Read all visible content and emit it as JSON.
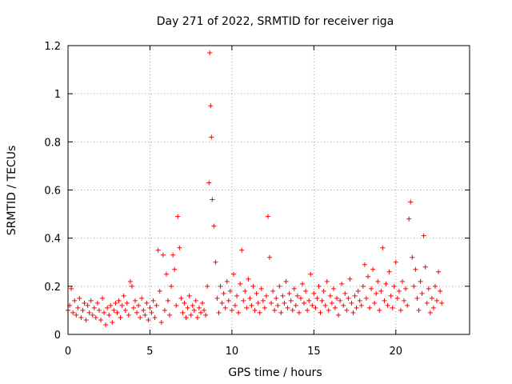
{
  "chart_data": {
    "type": "scatter",
    "title": "Day 271 of 2022, SRMTID for receiver riga",
    "xlabel": "GPS time / hours",
    "ylabel": "SRMTID / TECUs",
    "xlim": [
      0,
      24.5
    ],
    "ylim": [
      0,
      1.2
    ],
    "xticks": [
      0,
      5,
      10,
      15,
      20
    ],
    "xtick_labels": [
      "0",
      "5",
      "10",
      "15",
      "20"
    ],
    "yticks": [
      0,
      0.2,
      0.4,
      0.6,
      0.8,
      1.0,
      1.2
    ],
    "ytick_labels": [
      "0",
      "0.2",
      "0.4",
      "0.6",
      "0.8",
      "1",
      "1.2"
    ],
    "grid": true,
    "marker": "+",
    "color": "#ff0000",
    "series": [
      {
        "name": "SRMTID",
        "x": [
          0.0,
          0.1,
          0.2,
          0.3,
          0.4,
          0.5,
          0.6,
          0.7,
          0.8,
          0.9,
          1.0,
          1.1,
          1.2,
          1.3,
          1.4,
          1.5,
          1.6,
          1.7,
          1.8,
          1.9,
          2.0,
          2.1,
          2.2,
          2.3,
          2.4,
          2.5,
          2.6,
          2.7,
          2.8,
          2.9,
          3.0,
          3.1,
          3.2,
          3.3,
          3.4,
          3.5,
          3.6,
          3.7,
          3.8,
          3.9,
          4.0,
          4.1,
          4.2,
          4.3,
          4.4,
          4.5,
          4.6,
          4.7,
          4.8,
          4.9,
          5.0,
          5.1,
          5.2,
          5.3,
          5.4,
          5.5,
          5.6,
          5.7,
          5.8,
          5.9,
          6.0,
          6.1,
          6.2,
          6.3,
          6.4,
          6.5,
          6.6,
          6.7,
          6.8,
          6.9,
          7.0,
          7.1,
          7.2,
          7.3,
          7.4,
          7.5,
          7.6,
          7.7,
          7.8,
          7.9,
          8.0,
          8.1,
          8.2,
          8.3,
          8.4,
          8.5,
          8.6,
          8.65,
          8.7,
          8.75,
          8.8,
          8.9,
          9.0,
          9.1,
          9.2,
          9.3,
          9.4,
          9.5,
          9.6,
          9.7,
          9.8,
          9.9,
          10.0,
          10.1,
          10.2,
          10.3,
          10.4,
          10.5,
          10.6,
          10.7,
          10.8,
          10.9,
          11.0,
          11.1,
          11.2,
          11.3,
          11.4,
          11.5,
          11.6,
          11.7,
          11.8,
          11.9,
          12.0,
          12.1,
          12.2,
          12.3,
          12.4,
          12.5,
          12.6,
          12.7,
          12.8,
          12.9,
          13.0,
          13.1,
          13.2,
          13.3,
          13.4,
          13.5,
          13.6,
          13.7,
          13.8,
          13.9,
          14.0,
          14.1,
          14.2,
          14.3,
          14.4,
          14.5,
          14.6,
          14.7,
          14.8,
          14.9,
          15.0,
          15.1,
          15.2,
          15.3,
          15.4,
          15.5,
          15.6,
          15.7,
          15.8,
          15.9,
          16.0,
          16.1,
          16.2,
          16.3,
          16.4,
          16.5,
          16.6,
          16.7,
          16.8,
          16.9,
          17.0,
          17.1,
          17.2,
          17.3,
          17.4,
          17.5,
          17.6,
          17.7,
          17.8,
          17.9,
          18.0,
          18.1,
          18.2,
          18.3,
          18.4,
          18.5,
          18.6,
          18.7,
          18.8,
          18.9,
          19.0,
          19.1,
          19.2,
          19.3,
          19.4,
          19.5,
          19.6,
          19.7,
          19.8,
          19.9,
          20.0,
          20.1,
          20.2,
          20.3,
          20.4,
          20.5,
          20.6,
          20.7,
          20.8,
          20.9,
          21.0,
          21.1,
          21.2,
          21.3,
          21.4,
          21.5,
          21.6,
          21.7,
          21.8,
          21.9,
          22.0,
          22.1,
          22.2,
          22.3,
          22.4,
          22.5,
          22.6,
          22.7,
          22.8
        ],
        "y": [
          0.1,
          0.12,
          0.19,
          0.09,
          0.14,
          0.08,
          0.11,
          0.15,
          0.07,
          0.1,
          0.13,
          0.06,
          0.12,
          0.09,
          0.14,
          0.08,
          0.11,
          0.07,
          0.13,
          0.1,
          0.06,
          0.15,
          0.09,
          0.04,
          0.11,
          0.08,
          0.12,
          0.05,
          0.1,
          0.13,
          0.09,
          0.14,
          0.07,
          0.12,
          0.16,
          0.1,
          0.13,
          0.08,
          0.22,
          0.2,
          0.11,
          0.14,
          0.09,
          0.12,
          0.07,
          0.15,
          0.1,
          0.08,
          0.13,
          0.06,
          0.11,
          0.09,
          0.14,
          0.07,
          0.12,
          0.35,
          0.18,
          0.05,
          0.33,
          0.1,
          0.25,
          0.14,
          0.08,
          0.2,
          0.33,
          0.27,
          0.12,
          0.49,
          0.36,
          0.15,
          0.09,
          0.13,
          0.07,
          0.11,
          0.16,
          0.08,
          0.12,
          0.1,
          0.14,
          0.07,
          0.11,
          0.09,
          0.13,
          0.1,
          0.08,
          0.2,
          0.63,
          1.17,
          0.95,
          0.82,
          0.56,
          0.45,
          0.3,
          0.15,
          0.09,
          0.2,
          0.13,
          0.17,
          0.11,
          0.22,
          0.14,
          0.18,
          0.1,
          0.25,
          0.12,
          0.16,
          0.09,
          0.21,
          0.35,
          0.14,
          0.18,
          0.11,
          0.23,
          0.15,
          0.12,
          0.2,
          0.1,
          0.17,
          0.13,
          0.09,
          0.19,
          0.14,
          0.11,
          0.16,
          0.49,
          0.32,
          0.13,
          0.18,
          0.1,
          0.15,
          0.12,
          0.2,
          0.09,
          0.16,
          0.13,
          0.22,
          0.11,
          0.17,
          0.14,
          0.1,
          0.19,
          0.12,
          0.16,
          0.09,
          0.15,
          0.21,
          0.13,
          0.18,
          0.1,
          0.14,
          0.25,
          0.12,
          0.17,
          0.11,
          0.15,
          0.2,
          0.09,
          0.14,
          0.18,
          0.12,
          0.22,
          0.1,
          0.16,
          0.13,
          0.19,
          0.11,
          0.15,
          0.08,
          0.14,
          0.21,
          0.12,
          0.17,
          0.1,
          0.15,
          0.23,
          0.13,
          0.09,
          0.16,
          0.11,
          0.18,
          0.14,
          0.12,
          0.2,
          0.29,
          0.15,
          0.24,
          0.11,
          0.19,
          0.27,
          0.13,
          0.17,
          0.22,
          0.1,
          0.18,
          0.36,
          0.14,
          0.21,
          0.12,
          0.26,
          0.16,
          0.11,
          0.2,
          0.3,
          0.15,
          0.18,
          0.1,
          0.22,
          0.14,
          0.19,
          0.12,
          0.48,
          0.55,
          0.32,
          0.2,
          0.27,
          0.15,
          0.1,
          0.22,
          0.17,
          0.41,
          0.28,
          0.13,
          0.19,
          0.09,
          0.15,
          0.11,
          0.2,
          0.14,
          0.26,
          0.18,
          0.13
        ]
      }
    ]
  }
}
